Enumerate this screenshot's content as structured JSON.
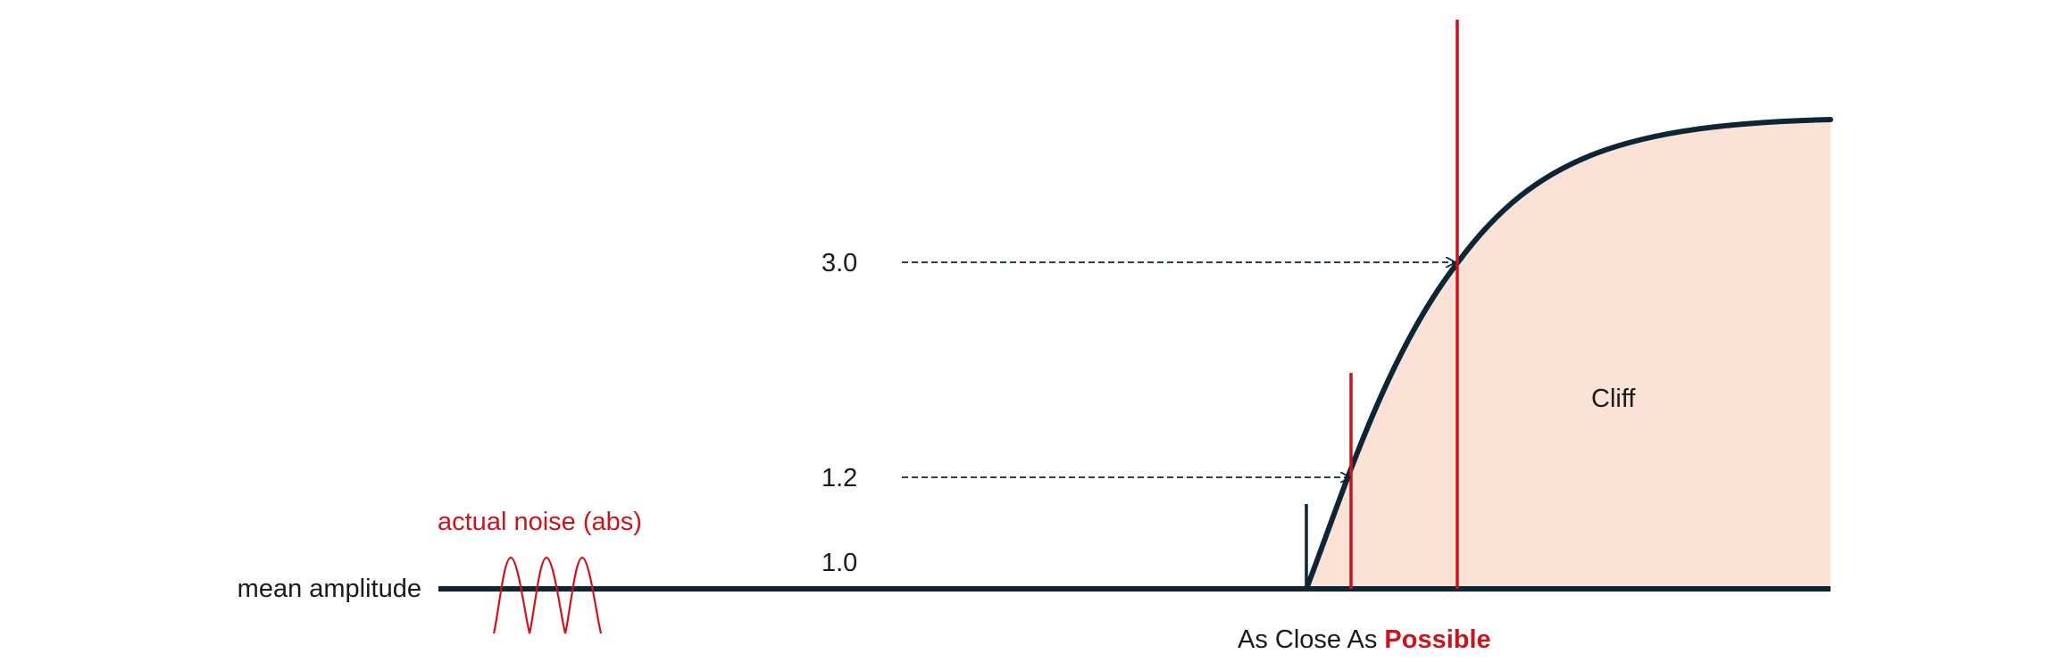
{
  "labels": {
    "mean_amplitude": "mean amplitude",
    "actual_noise": "actual noise (abs)",
    "cliff": "Cliff",
    "bottom_prefix": "As Close As ",
    "bottom_emphasis": "Possible"
  },
  "levels": [
    {
      "text": "1.0"
    },
    {
      "text": "1.2"
    },
    {
      "text": "3.0"
    }
  ],
  "colors": {
    "line": "#0e2535",
    "accent": "#c8161d",
    "cliff_fill": "#fae3d6",
    "text": "#1a1a1a"
  }
}
